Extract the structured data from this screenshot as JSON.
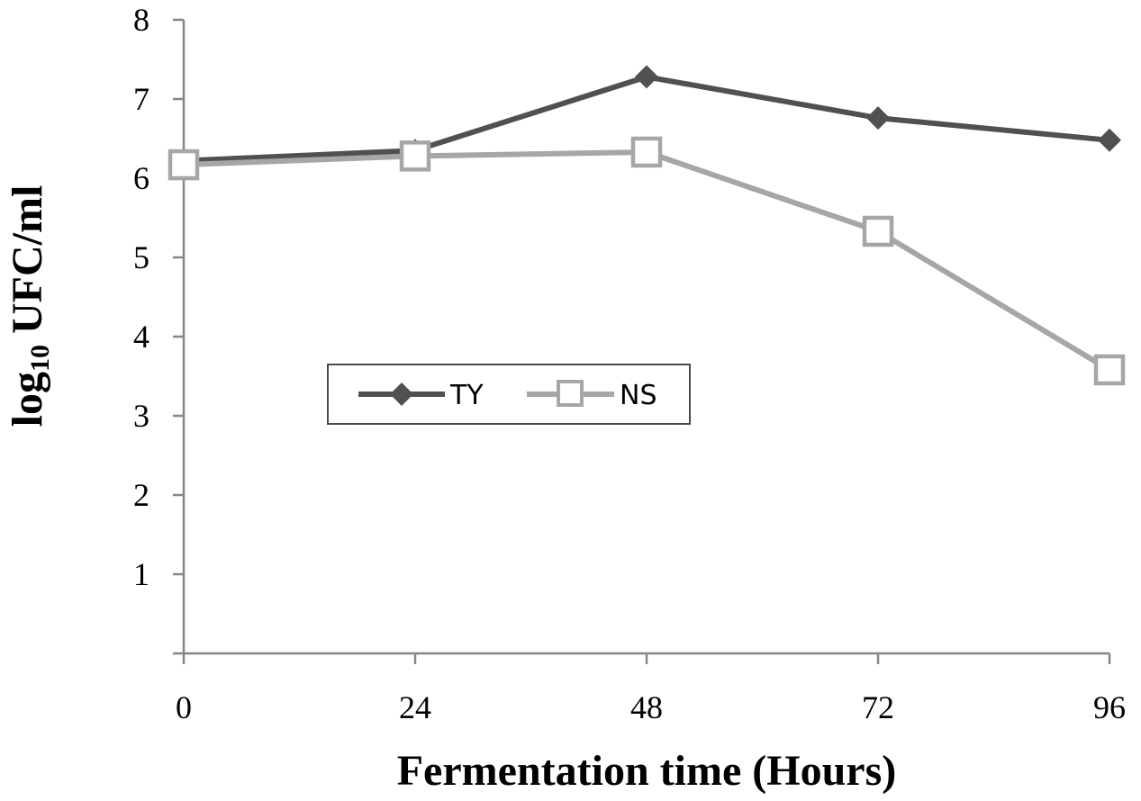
{
  "chart_data": {
    "type": "line",
    "x": [
      0,
      24,
      48,
      72,
      96
    ],
    "xlabel": "Fermentation time (Hours)",
    "ylabel_main": "log",
    "ylabel_sub": "10",
    "ylabel_rest": " UFC/ml",
    "ylim": [
      0,
      8
    ],
    "xlim": [
      0,
      96
    ],
    "y_ticks": [
      "1",
      "2",
      "3",
      "4",
      "5",
      "6",
      "7",
      "8"
    ],
    "x_ticks": [
      "0",
      "24",
      "48",
      "72",
      "96"
    ],
    "grid": false,
    "legend_position": "center-left",
    "series": [
      {
        "name": "TY",
        "values": [
          6.22,
          6.35,
          7.28,
          6.76,
          6.48
        ],
        "color": "#505050",
        "marker": "diamond"
      },
      {
        "name": "NS",
        "values": [
          6.17,
          6.28,
          6.33,
          5.33,
          3.58
        ],
        "color": "#a6a6a6",
        "marker": "square-open"
      }
    ]
  }
}
